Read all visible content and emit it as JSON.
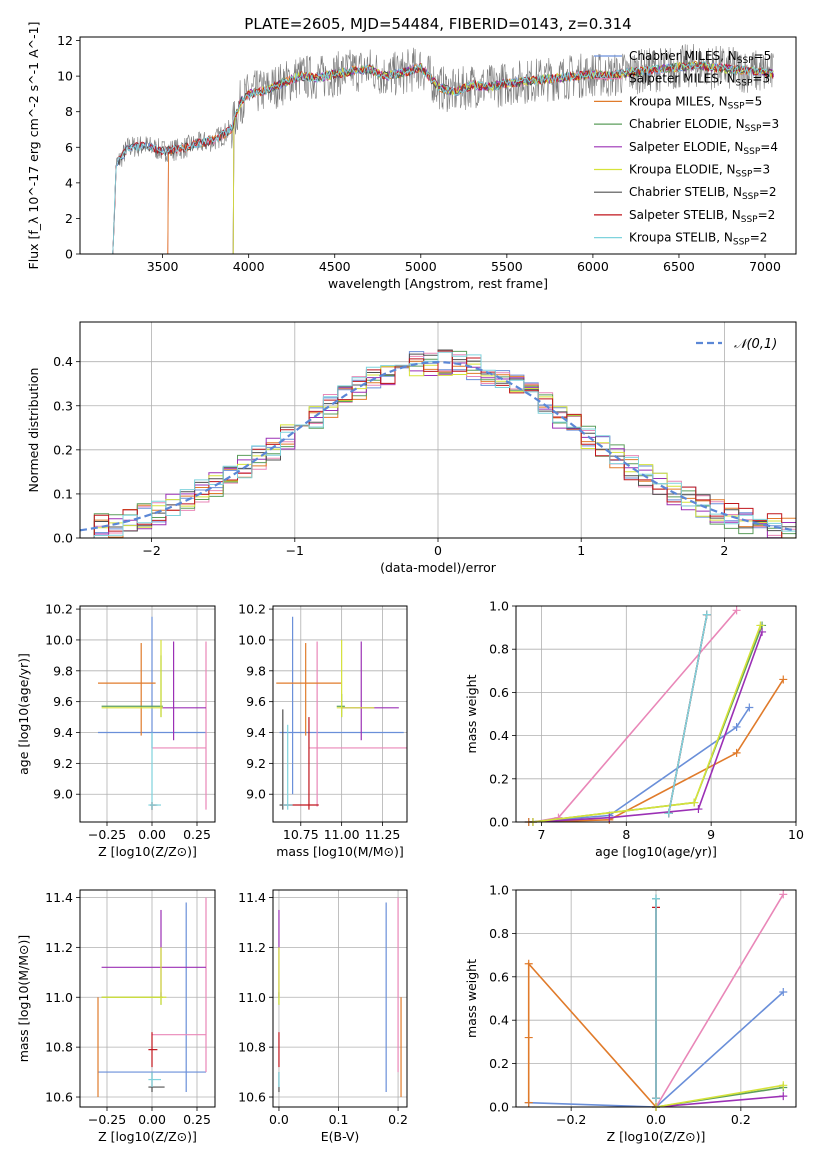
{
  "figure_title": "PLATE=2605, MJD=54484, FIBERID=0143, z=0.314",
  "models": [
    {
      "name": "Chabrier MILES",
      "nssp": "5",
      "color": "#6a8fd9"
    },
    {
      "name": "Salpeter MILES",
      "nssp": "3",
      "color": "#e987b8"
    },
    {
      "name": "Kroupa MILES",
      "nssp": "5",
      "color": "#e07b2b"
    },
    {
      "name": "Chabrier ELODIE",
      "nssp": "3",
      "color": "#5c9e5c"
    },
    {
      "name": "Salpeter ELODIE",
      "nssp": "4",
      "color": "#9b30b5"
    },
    {
      "name": "Kroupa ELODIE",
      "nssp": "3",
      "color": "#d6e33a"
    },
    {
      "name": "Chabrier STELIB",
      "nssp": "2",
      "color": "#505050"
    },
    {
      "name": "Salpeter STELIB",
      "nssp": "2",
      "color": "#c0151c"
    },
    {
      "name": "Kroupa STELIB",
      "nssp": "2",
      "color": "#7fd3dd"
    }
  ],
  "chart_data": [
    {
      "id": "spectrum",
      "type": "line",
      "xlabel": "wavelength [Angstrom, rest frame]",
      "ylabel": "Flux [f_λ 10^-17 erg cm^-2 s^-1 A^-1]",
      "xlim": [
        3020,
        7180
      ],
      "ylim": [
        0,
        12.2
      ],
      "xticks": [
        3500,
        4000,
        4500,
        5000,
        5500,
        6000,
        6500,
        7000
      ],
      "yticks": [
        0,
        2,
        4,
        6,
        8,
        10,
        12
      ],
      "legend": "right",
      "grid": false,
      "continuum": {
        "x": [
          3210,
          3230,
          3300,
          3400,
          3500,
          3600,
          3700,
          3800,
          3900,
          3950,
          4000,
          4100,
          4200,
          4300,
          4400,
          4500,
          4600,
          4700,
          4800,
          4900,
          5000,
          5100,
          5200,
          5300,
          5400,
          5500,
          5600,
          5700,
          5800,
          5900,
          6000,
          6100,
          6200,
          6300,
          6400,
          6500,
          6600,
          6700,
          6800,
          6900,
          7000,
          7050
        ],
        "y": [
          0,
          5.0,
          6.0,
          6.1,
          5.8,
          5.9,
          6.2,
          6.4,
          7.0,
          8.5,
          9.0,
          9.2,
          9.6,
          10.0,
          9.9,
          10.1,
          10.3,
          10.4,
          10.0,
          10.2,
          10.5,
          9.4,
          9.1,
          9.5,
          9.4,
          9.6,
          9.7,
          9.8,
          9.9,
          10.0,
          10.1,
          10.0,
          10.2,
          10.3,
          10.4,
          10.5,
          10.6,
          10.5,
          10.4,
          10.3,
          10.2,
          10.1
        ]
      },
      "model_starts": [
        3210,
        3530,
        3530,
        3910,
        3910,
        3910,
        3210,
        3210,
        3210
      ]
    },
    {
      "id": "residuals",
      "type": "histogram",
      "xlabel": "(data-model)/error",
      "ylabel": "Normed distribution",
      "xlim": [
        -2.5,
        2.5
      ],
      "ylim": [
        0,
        0.49
      ],
      "xticks": [
        -2,
        -1,
        0,
        1,
        2
      ],
      "yticks": [
        0.0,
        0.1,
        0.2,
        0.3,
        0.4
      ],
      "bin_width": 0.1,
      "grid": true,
      "reference_label": "𝒩(0,1)",
      "reference_color": "#5b87d6"
    },
    {
      "id": "age_vs_Z",
      "type": "errorbar",
      "xlabel": "Z [log10(Z/Z⊙)]",
      "ylabel": "age  [log10(age/yr)]",
      "xlim": [
        -0.4,
        0.35
      ],
      "ylim": [
        8.82,
        10.22
      ],
      "xticks": [
        -0.25,
        0.0,
        0.25
      ],
      "xticklabels": [
        "−0.25",
        "0.00",
        "0.25"
      ],
      "yticks": [
        9.0,
        9.2,
        9.4,
        9.6,
        9.8,
        10.0,
        10.2
      ],
      "grid": true,
      "points": [
        {
          "model": 0,
          "x": 0.0,
          "xl": -0.3,
          "xh": 0.3,
          "y": 9.4,
          "yl": 9.3,
          "yh": 10.15
        },
        {
          "model": 1,
          "x": 0.3,
          "xl": 0.0,
          "xh": 0.3,
          "y": 9.3,
          "yl": 8.9,
          "yh": 9.99
        },
        {
          "model": 2,
          "x": -0.06,
          "xl": -0.3,
          "xh": 0.02,
          "y": 9.72,
          "yl": 9.38,
          "yh": 9.98
        },
        {
          "model": 3,
          "x": 0.05,
          "xl": -0.28,
          "xh": 0.06,
          "y": 9.57,
          "yl": 9.5,
          "yh": 9.9
        },
        {
          "model": 4,
          "x": 0.12,
          "xl": 0.05,
          "xh": 0.3,
          "y": 9.56,
          "yl": 9.35,
          "yh": 9.99
        },
        {
          "model": 5,
          "x": 0.05,
          "xl": -0.28,
          "xh": 0.06,
          "y": 9.56,
          "yl": 9.5,
          "yh": 10.0
        },
        {
          "model": 6,
          "x": 0.0,
          "xl": -0.01,
          "xh": 0.03,
          "y": 8.93,
          "yl": 8.9,
          "yh": 8.95
        },
        {
          "model": 7,
          "x": 0.0,
          "xl": -0.01,
          "xh": 0.02,
          "y": 8.93,
          "yl": 8.9,
          "yh": 8.95
        },
        {
          "model": 8,
          "x": 0.0,
          "xl": -0.02,
          "xh": 0.05,
          "y": 8.93,
          "yl": 8.9,
          "yh": 9.4
        }
      ]
    },
    {
      "id": "age_vs_mass",
      "type": "errorbar",
      "xlabel": "mass [log10(M/M⊙)]",
      "ylabel": "",
      "xlim": [
        10.58,
        11.4
      ],
      "ylim": [
        8.82,
        10.22
      ],
      "xticks": [
        10.75,
        11.0,
        11.25
      ],
      "xticklabels": [
        "10.75",
        "11.00",
        "11.25"
      ],
      "yticks": [
        9.0,
        9.2,
        9.4,
        9.6,
        9.8,
        10.0,
        10.2
      ],
      "grid": true,
      "points": [
        {
          "model": 0,
          "x": 10.7,
          "xl": 10.62,
          "xh": 11.38,
          "y": 9.4,
          "yl": 9.0,
          "yh": 10.15
        },
        {
          "model": 1,
          "x": 10.85,
          "xl": 10.8,
          "xh": 11.4,
          "y": 9.3,
          "yl": 8.92,
          "yh": 9.99
        },
        {
          "model": 2,
          "x": 10.78,
          "xl": 10.6,
          "xh": 11.0,
          "y": 9.72,
          "yl": 9.38,
          "yh": 9.98
        },
        {
          "model": 3,
          "x": 11.0,
          "xl": 10.97,
          "xh": 11.02,
          "y": 9.57,
          "yl": 9.5,
          "yh": 9.65
        },
        {
          "model": 4,
          "x": 11.12,
          "xl": 11.0,
          "xh": 11.35,
          "y": 9.56,
          "yl": 9.35,
          "yh": 9.99
        },
        {
          "model": 5,
          "x": 11.0,
          "xl": 10.97,
          "xh": 11.2,
          "y": 9.56,
          "yl": 9.5,
          "yh": 10.0
        },
        {
          "model": 6,
          "x": 10.64,
          "xl": 10.62,
          "xh": 10.7,
          "y": 8.93,
          "yl": 8.9,
          "yh": 9.55
        },
        {
          "model": 7,
          "x": 10.8,
          "xl": 10.64,
          "xh": 10.86,
          "y": 8.93,
          "yl": 8.9,
          "yh": 9.5
        },
        {
          "model": 8,
          "x": 10.67,
          "xl": 10.64,
          "xh": 10.7,
          "y": 8.93,
          "yl": 8.9,
          "yh": 9.45
        }
      ]
    },
    {
      "id": "weight_vs_age",
      "type": "line",
      "xlabel": "age  [log10(age/yr)]",
      "ylabel": "mass weight",
      "xlim": [
        6.7,
        10.0
      ],
      "ylim": [
        0,
        1.0
      ],
      "xticks": [
        7,
        8,
        9,
        10
      ],
      "yticks": [
        0.0,
        0.2,
        0.4,
        0.6,
        0.8,
        1.0
      ],
      "grid": true,
      "series": [
        {
          "model": 0,
          "x": [
            6.85,
            7.8,
            9.3,
            9.45
          ],
          "y": [
            0.0,
            0.03,
            0.44,
            0.53
          ]
        },
        {
          "model": 1,
          "x": [
            6.9,
            7.2,
            9.3
          ],
          "y": [
            0.0,
            0.02,
            0.98
          ]
        },
        {
          "model": 2,
          "x": [
            6.85,
            7.8,
            9.3,
            9.85
          ],
          "y": [
            0.0,
            0.01,
            0.32,
            0.66
          ]
        },
        {
          "model": 3,
          "x": [
            6.9,
            8.8,
            9.6
          ],
          "y": [
            0.0,
            0.09,
            0.91
          ]
        },
        {
          "model": 4,
          "x": [
            6.9,
            7.8,
            8.85,
            9.6
          ],
          "y": [
            0.0,
            0.02,
            0.06,
            0.88
          ]
        },
        {
          "model": 5,
          "x": [
            6.9,
            8.8,
            9.58
          ],
          "y": [
            0.0,
            0.09,
            0.91
          ]
        },
        {
          "model": 6,
          "x": [
            8.5,
            8.95
          ],
          "y": [
            0.04,
            0.96
          ]
        },
        {
          "model": 7,
          "x": [
            8.5,
            8.95
          ],
          "y": [
            0.04,
            0.96
          ]
        },
        {
          "model": 8,
          "x": [
            8.5,
            8.95
          ],
          "y": [
            0.04,
            0.96
          ]
        }
      ]
    },
    {
      "id": "mass_vs_Z",
      "type": "errorbar",
      "xlabel": "Z [log10(Z/Z⊙)]",
      "ylabel": "mass [log10(M/M⊙)]",
      "xlim": [
        -0.4,
        0.35
      ],
      "ylim": [
        10.56,
        11.43
      ],
      "xticks": [
        -0.25,
        0.0,
        0.25
      ],
      "xticklabels": [
        "−0.25",
        "0.00",
        "0.25"
      ],
      "yticks": [
        10.6,
        10.8,
        11.0,
        11.2,
        11.4
      ],
      "grid": true,
      "points": [
        {
          "model": 0,
          "x": 0.19,
          "xl": -0.3,
          "xh": 0.3,
          "y": 10.7,
          "yl": 10.62,
          "yh": 11.38
        },
        {
          "model": 1,
          "x": 0.3,
          "xl": 0.0,
          "xh": 0.3,
          "y": 10.85,
          "yl": 10.7,
          "yh": 11.4
        },
        {
          "model": 2,
          "x": -0.3,
          "xl": -0.3,
          "xh": -0.3,
          "y": 10.78,
          "yl": 10.6,
          "yh": 11.0
        },
        {
          "model": 3,
          "x": 0.05,
          "xl": -0.28,
          "xh": 0.06,
          "y": 11.0,
          "yl": 10.97,
          "yh": 11.02
        },
        {
          "model": 4,
          "x": 0.05,
          "xl": -0.28,
          "xh": 0.3,
          "y": 11.12,
          "yl": 11.0,
          "yh": 11.35
        },
        {
          "model": 5,
          "x": 0.05,
          "xl": -0.28,
          "xh": 0.08,
          "y": 11.0,
          "yl": 10.97,
          "yh": 11.2
        },
        {
          "model": 6,
          "x": 0.0,
          "xl": -0.02,
          "xh": 0.07,
          "y": 10.64,
          "yl": 10.62,
          "yh": 10.7
        },
        {
          "model": 7,
          "x": 0.0,
          "xl": -0.02,
          "xh": 0.03,
          "y": 10.79,
          "yl": 10.72,
          "yh": 10.86
        },
        {
          "model": 8,
          "x": 0.0,
          "xl": -0.02,
          "xh": 0.05,
          "y": 10.67,
          "yl": 10.64,
          "yh": 10.7
        }
      ]
    },
    {
      "id": "mass_vs_ebv",
      "type": "errorbar",
      "xlabel": "E(B-V)",
      "ylabel": "",
      "xlim": [
        -0.01,
        0.215
      ],
      "ylim": [
        10.56,
        11.43
      ],
      "xticks": [
        0.0,
        0.1,
        0.2
      ],
      "xticklabels": [
        "0.0",
        "0.1",
        "0.2"
      ],
      "yticks": [
        10.6,
        10.8,
        11.0,
        11.2,
        11.4
      ],
      "grid": true,
      "points": [
        {
          "model": 0,
          "x": 0.18,
          "xl": 0.18,
          "xh": 0.18,
          "y": 10.7,
          "yl": 10.62,
          "yh": 11.38
        },
        {
          "model": 1,
          "x": 0.2,
          "xl": 0.2,
          "xh": 0.2,
          "y": 10.85,
          "yl": 10.7,
          "yh": 11.4
        },
        {
          "model": 2,
          "x": 0.205,
          "xl": 0.205,
          "xh": 0.205,
          "y": 10.78,
          "yl": 10.6,
          "yh": 11.0
        },
        {
          "model": 3,
          "x": 0.0,
          "xl": 0.0,
          "xh": 0.0,
          "y": 11.0,
          "yl": 10.97,
          "yh": 11.02
        },
        {
          "model": 4,
          "x": 0.0,
          "xl": 0.0,
          "xh": 0.0,
          "y": 11.12,
          "yl": 11.0,
          "yh": 11.35
        },
        {
          "model": 5,
          "x": 0.0,
          "xl": 0.0,
          "xh": 0.0,
          "y": 11.0,
          "yl": 10.97,
          "yh": 11.2
        },
        {
          "model": 6,
          "x": 0.0,
          "xl": 0.0,
          "xh": 0.0,
          "y": 10.64,
          "yl": 10.62,
          "yh": 10.7
        },
        {
          "model": 7,
          "x": 0.0,
          "xl": 0.0,
          "xh": 0.0,
          "y": 10.79,
          "yl": 10.72,
          "yh": 10.86
        },
        {
          "model": 8,
          "x": 0.0,
          "xl": 0.0,
          "xh": 0.0,
          "y": 10.67,
          "yl": 10.64,
          "yh": 10.7
        }
      ]
    },
    {
      "id": "weight_vs_Z",
      "type": "line",
      "xlabel": "Z [log10(Z/Z⊙)]",
      "ylabel": "mass weight",
      "xlim": [
        -0.33,
        0.33
      ],
      "ylim": [
        0,
        1.0
      ],
      "xticks": [
        -0.2,
        0.0,
        0.2
      ],
      "xticklabels": [
        "−0.2",
        "0.0",
        "0.2"
      ],
      "yticks": [
        0.0,
        0.2,
        0.4,
        0.6,
        0.8,
        1.0
      ],
      "grid": true,
      "series": [
        {
          "model": 0,
          "x": [
            -0.3,
            0.0,
            0.3
          ],
          "y": [
            0.02,
            0.0,
            0.53
          ]
        },
        {
          "model": 1,
          "x": [
            0.0,
            0.3
          ],
          "y": [
            0.0,
            0.98
          ]
        },
        {
          "model": 2,
          "x": [
            -0.3,
            -0.3,
            -0.3,
            0.0
          ],
          "y": [
            0.02,
            0.32,
            0.66,
            0.0
          ]
        },
        {
          "model": 3,
          "x": [
            0.0,
            0.3
          ],
          "y": [
            0.0,
            0.09
          ]
        },
        {
          "model": 4,
          "x": [
            0.0,
            0.3
          ],
          "y": [
            0.0,
            0.05
          ]
        },
        {
          "model": 5,
          "x": [
            0.0,
            0.3
          ],
          "y": [
            0.0,
            0.1
          ]
        },
        {
          "model": 6,
          "x": [
            0.0,
            0.0
          ],
          "y": [
            0.04,
            0.96
          ]
        },
        {
          "model": 7,
          "x": [
            0.0,
            0.0
          ],
          "y": [
            0.04,
            0.92
          ]
        },
        {
          "model": 8,
          "x": [
            0.0,
            0.0
          ],
          "y": [
            0.04,
            0.96
          ]
        }
      ]
    }
  ]
}
